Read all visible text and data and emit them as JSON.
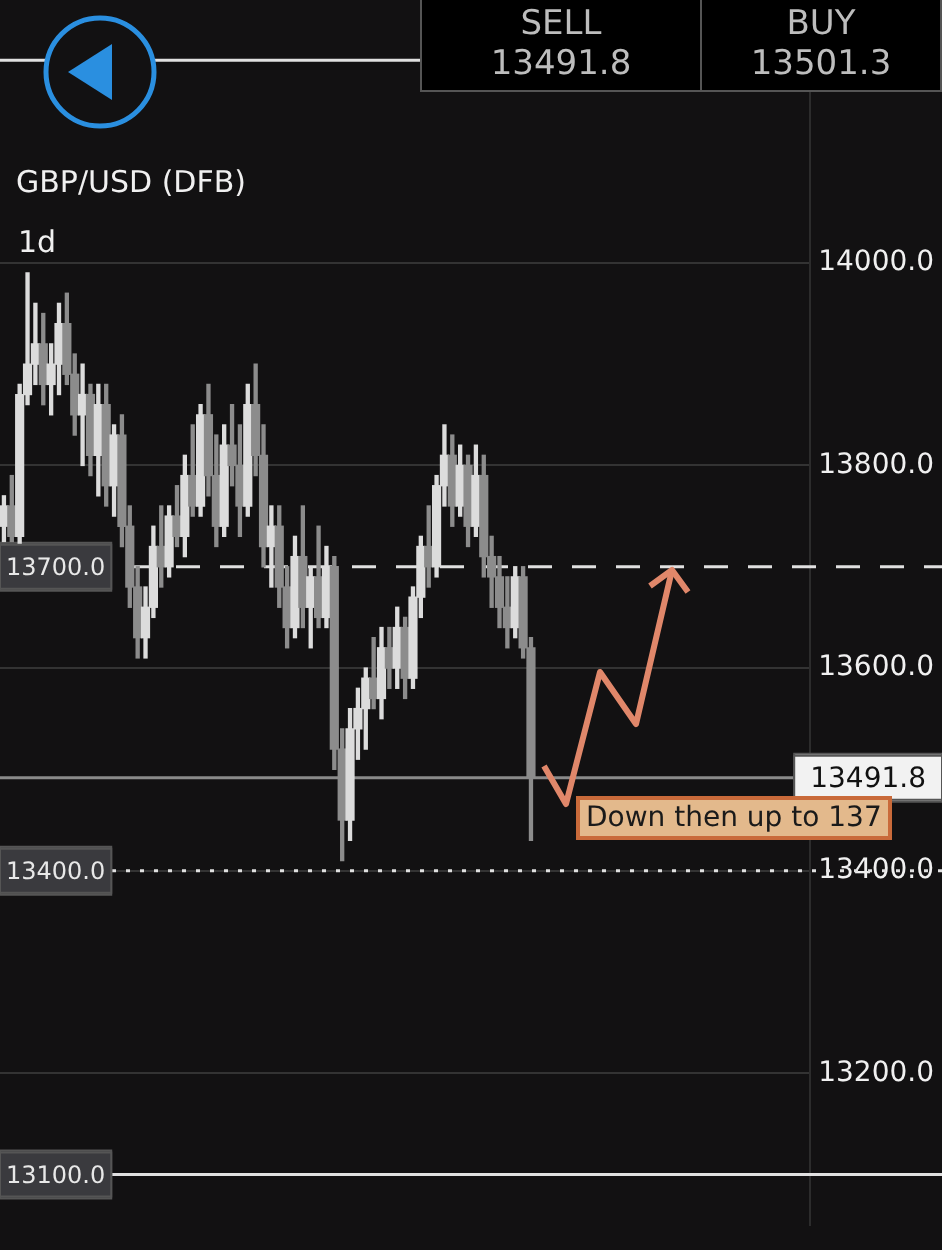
{
  "chart_data": {
    "type": "candlestick",
    "title": "GBP/USD (DFB)",
    "subtitle": "1d",
    "annotations": [
      "SELL",
      "13491.8",
      "BUY",
      "13501.3",
      "Down then up to 137"
    ],
    "categories": [
      null,
      null,
      null,
      null,
      null,
      null,
      null,
      null,
      null,
      null,
      null,
      null,
      null,
      null,
      null,
      null,
      null,
      null,
      null,
      null,
      null,
      null,
      null,
      null,
      null,
      null,
      null,
      null,
      null,
      null,
      null,
      null,
      null,
      null,
      null,
      null,
      null,
      null,
      null,
      null,
      null,
      null,
      null,
      null,
      null,
      null,
      null,
      null,
      null,
      null,
      null,
      null,
      null,
      null,
      null,
      null,
      null,
      null,
      null,
      null,
      null,
      null,
      null,
      null,
      null,
      null,
      null,
      null,
      null,
      null,
      null,
      null,
      null,
      null,
      null,
      null,
      null,
      null,
      null,
      null,
      null,
      null,
      null,
      null,
      null,
      null,
      null,
      null,
      null,
      null,
      null,
      null,
      null,
      null,
      null,
      null,
      null,
      null,
      null,
      null,
      null,
      null,
      null
    ],
    "colors": [
      "#dcdcdc",
      "#8c8c8c",
      "#dcdcdc",
      "#dcdcdc",
      "#dcdcdc",
      "#8c8c8c",
      "#dcdcdc",
      "#dcdcdc",
      "#8c8c8c",
      "#8c8c8c",
      "#dcdcdc",
      "#8c8c8c",
      "#dcdcdc",
      "#8c8c8c",
      "#dcdcdc",
      "#8c8c8c",
      "#8c8c8c",
      "#8c8c8c",
      "#dcdcdc",
      "#dcdcdc",
      "#8c8c8c",
      "#dcdcdc",
      "#8c8c8c",
      "#dcdcdc",
      "#8c8c8c",
      "#dcdcdc",
      "#8c8c8c",
      "#8c8c8c",
      "#dcdcdc",
      "#8c8c8c",
      "#8c8c8c",
      "#dcdcdc",
      "#8c8c8c",
      "#8c8c8c",
      "#dcdcdc",
      "#8c8c8c",
      "#8c8c8c",
      "#dcdcdc",
      "#8c8c8c",
      "#dcdcdc",
      "#8c8c8c",
      "#dcdcdc",
      "#8c8c8c",
      "#8c8c8c",
      "#dcdcdc",
      "#dcdcdc",
      "#dcdcdc",
      "#8c8c8c",
      "#dcdcdc",
      "#8c8c8c",
      "#dcdcdc",
      "#8c8c8c",
      "#dcdcdc",
      "#dcdcdc",
      "#8c8c8c",
      "#dcdcdc",
      "#dcdcdc",
      "#8c8c8c",
      "#dcdcdc",
      "#8c8c8c",
      "#dcdcdc",
      "#8c8c8c",
      "#8c8c8c",
      "#8c8c8c",
      "#8c8c8c",
      "#dcdcdc",
      "#8c8c8c",
      "#8c8c8c",
      null,
      null,
      null,
      null,
      null,
      null,
      null,
      null,
      null,
      null,
      null,
      null,
      null,
      null,
      null,
      null,
      null,
      null,
      null,
      null,
      null,
      null,
      null,
      null,
      null,
      null,
      null,
      null,
      null,
      null,
      null,
      null,
      null,
      null,
      null
    ],
    "ohlc": [
      [
        13740,
        13770,
        13725,
        13760
      ],
      [
        13760,
        13790,
        13725,
        13730
      ],
      [
        13730,
        13880,
        13720,
        13870
      ],
      [
        13870,
        13990,
        13860,
        13900
      ],
      [
        13900,
        13960,
        13880,
        13920
      ],
      [
        13920,
        13950,
        13860,
        13880
      ],
      [
        13880,
        13920,
        13850,
        13900
      ],
      [
        13900,
        13960,
        13870,
        13940
      ],
      [
        13940,
        13970,
        13880,
        13890
      ],
      [
        13890,
        13910,
        13830,
        13850
      ],
      [
        13850,
        13900,
        13800,
        13870
      ],
      [
        13870,
        13880,
        13790,
        13810
      ],
      [
        13810,
        13880,
        13770,
        13860
      ],
      [
        13860,
        13880,
        13760,
        13780
      ],
      [
        13780,
        13840,
        13750,
        13830
      ],
      [
        13830,
        13850,
        13720,
        13740
      ],
      [
        13740,
        13760,
        13660,
        13680
      ],
      [
        13680,
        13700,
        13610,
        13630
      ],
      [
        13630,
        13680,
        13610,
        13660
      ],
      [
        13660,
        13740,
        13650,
        13720
      ],
      [
        13720,
        13760,
        13680,
        13700
      ],
      [
        13700,
        13760,
        13690,
        13750
      ],
      [
        13750,
        13780,
        13720,
        13730
      ],
      [
        13730,
        13810,
        13710,
        13790
      ],
      [
        13790,
        13840,
        13750,
        13760
      ],
      [
        13760,
        13860,
        13750,
        13850
      ],
      [
        13850,
        13880,
        13770,
        13790
      ],
      [
        13790,
        13830,
        13720,
        13740
      ],
      [
        13740,
        13840,
        13730,
        13820
      ],
      [
        13820,
        13860,
        13780,
        13800
      ],
      [
        13800,
        13840,
        13730,
        13760
      ],
      [
        13760,
        13880,
        13750,
        13860
      ],
      [
        13860,
        13900,
        13790,
        13810
      ],
      [
        13810,
        13840,
        13700,
        13720
      ],
      [
        13720,
        13760,
        13680,
        13740
      ],
      [
        13740,
        13760,
        13660,
        13680
      ],
      [
        13680,
        13700,
        13620,
        13640
      ],
      [
        13640,
        13730,
        13630,
        13710
      ],
      [
        13710,
        13760,
        13640,
        13660
      ],
      [
        13660,
        13700,
        13620,
        13690
      ],
      [
        13690,
        13740,
        13640,
        13650
      ],
      [
        13650,
        13720,
        13640,
        13700
      ],
      [
        13700,
        13710,
        13500,
        13520
      ],
      [
        13520,
        13540,
        13410,
        13450
      ],
      [
        13450,
        13560,
        13430,
        13540
      ],
      [
        13540,
        13580,
        13510,
        13560
      ],
      [
        13560,
        13600,
        13520,
        13590
      ],
      [
        13590,
        13630,
        13560,
        13570
      ],
      [
        13570,
        13640,
        13550,
        13620
      ],
      [
        13620,
        13640,
        13580,
        13600
      ],
      [
        13600,
        13660,
        13580,
        13640
      ],
      [
        13640,
        13650,
        13570,
        13590
      ],
      [
        13590,
        13680,
        13580,
        13670
      ],
      [
        13670,
        13730,
        13650,
        13720
      ],
      [
        13720,
        13760,
        13680,
        13700
      ],
      [
        13700,
        13790,
        13690,
        13780
      ],
      [
        13780,
        13840,
        13760,
        13810
      ],
      [
        13810,
        13830,
        13740,
        13760
      ],
      [
        13760,
        13820,
        13750,
        13800
      ],
      [
        13800,
        13810,
        13720,
        13740
      ],
      [
        13740,
        13820,
        13730,
        13790
      ],
      [
        13790,
        13810,
        13690,
        13710
      ],
      [
        13710,
        13730,
        13660,
        13690
      ],
      [
        13690,
        13710,
        13640,
        13660
      ],
      [
        13660,
        13690,
        13620,
        13640
      ],
      [
        13640,
        13700,
        13630,
        13690
      ],
      [
        13690,
        13700,
        13610,
        13620
      ],
      [
        13620,
        13630,
        13430,
        13491.8
      ],
      null,
      null,
      null,
      null,
      null,
      null,
      null,
      null,
      null,
      null,
      null,
      null,
      null,
      null,
      null,
      null,
      null,
      null,
      null,
      null,
      null,
      null,
      null,
      null,
      null,
      null,
      null,
      null,
      null,
      null,
      null,
      null,
      null,
      null,
      null
    ],
    "ylim": [
      13050,
      14235
    ],
    "yticks": [
      {
        "value": 13200,
        "label": "13200.0"
      },
      {
        "value": 13400,
        "label": "13400.0"
      },
      {
        "value": 13600,
        "label": "13600.0"
      },
      {
        "value": 13800,
        "label": "13800.0"
      },
      {
        "value": 14000,
        "label": "14000.0"
      }
    ],
    "grid": "y",
    "tick_labels": "y",
    "legend": false,
    "ref_lines": [
      {
        "axis": "y",
        "value": 14200,
        "label": null,
        "color": "#e0e0e0",
        "line_style": "solid"
      },
      {
        "axis": "y",
        "value": 13700,
        "label": "13700.0",
        "color": "#e0e0e0",
        "line_style": "dashed"
      },
      {
        "axis": "y",
        "value": 13400,
        "label": "13400.0",
        "color": "#e0e0e0",
        "line_style": "dotted"
      },
      {
        "axis": "y",
        "value": 13100,
        "label": "13100.0",
        "color": "#e0e0e0",
        "line_style": "solid"
      },
      {
        "axis": "y",
        "value": 13491.8,
        "label": "13491.8",
        "color": "#8a8a8a",
        "line_style": "solid"
      }
    ]
  }
}
